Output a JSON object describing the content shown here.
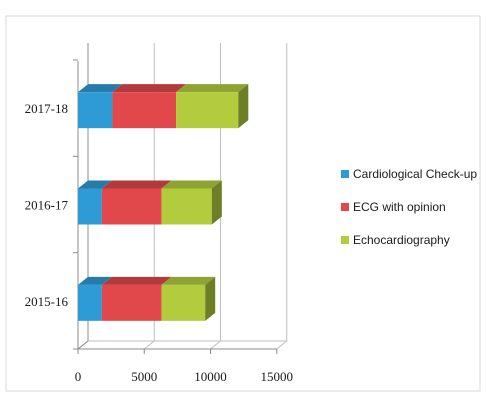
{
  "chart_data": {
    "type": "bar",
    "orientation": "horizontal",
    "stacked": true,
    "three_d": true,
    "categories": [
      "2015-16",
      "2016-17",
      "2017-18"
    ],
    "series": [
      {
        "name": "Cardiological Check-up",
        "color": "#2e9bd6",
        "values": [
          1800,
          1800,
          2600
        ]
      },
      {
        "name": "ECG with opinion",
        "color": "#e0484b",
        "values": [
          4500,
          4500,
          4800
        ]
      },
      {
        "name": "Echocardiography",
        "color": "#b2cc3e",
        "values": [
          3300,
          3800,
          4700
        ]
      }
    ],
    "x_ticks": [
      "0",
      "5000",
      "10000",
      "15000"
    ],
    "xlim": [
      0,
      15000
    ],
    "grid": true,
    "legend_position": "right",
    "title": "",
    "xlabel": "",
    "ylabel": ""
  }
}
